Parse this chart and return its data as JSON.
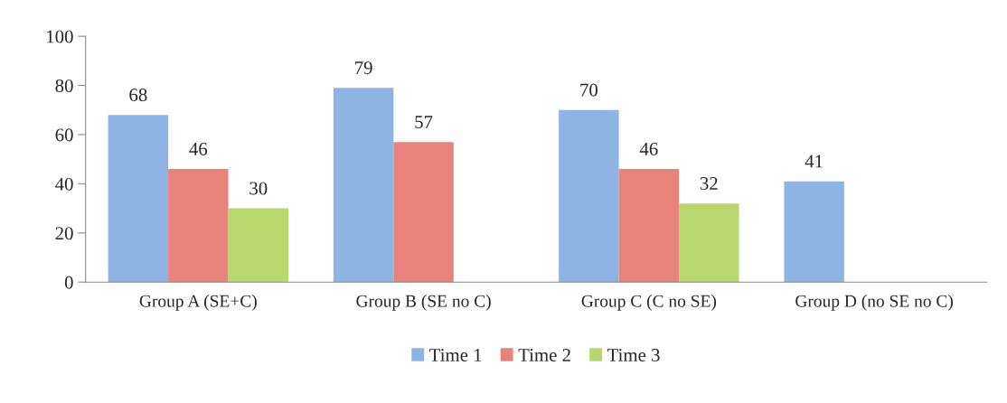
{
  "chart_data": {
    "type": "bar",
    "categories": [
      "Group A (SE+C)",
      "Group B (SE no C)",
      "Group C (C no SE)",
      "Group D (no SE no C)"
    ],
    "series": [
      {
        "name": "Time 1",
        "color": "#8db4e2",
        "values": [
          68,
          79,
          70,
          41
        ]
      },
      {
        "name": "Time 2",
        "color": "#e8837c",
        "values": [
          46,
          57,
          46,
          null
        ]
      },
      {
        "name": "Time 3",
        "color": "#b8d86e",
        "values": [
          30,
          null,
          32,
          null
        ]
      }
    ],
    "ylim": [
      0,
      100
    ],
    "yticks": [
      0,
      20,
      40,
      60,
      80,
      100
    ],
    "grid": false,
    "legend": "bottom",
    "data_labels": true
  }
}
